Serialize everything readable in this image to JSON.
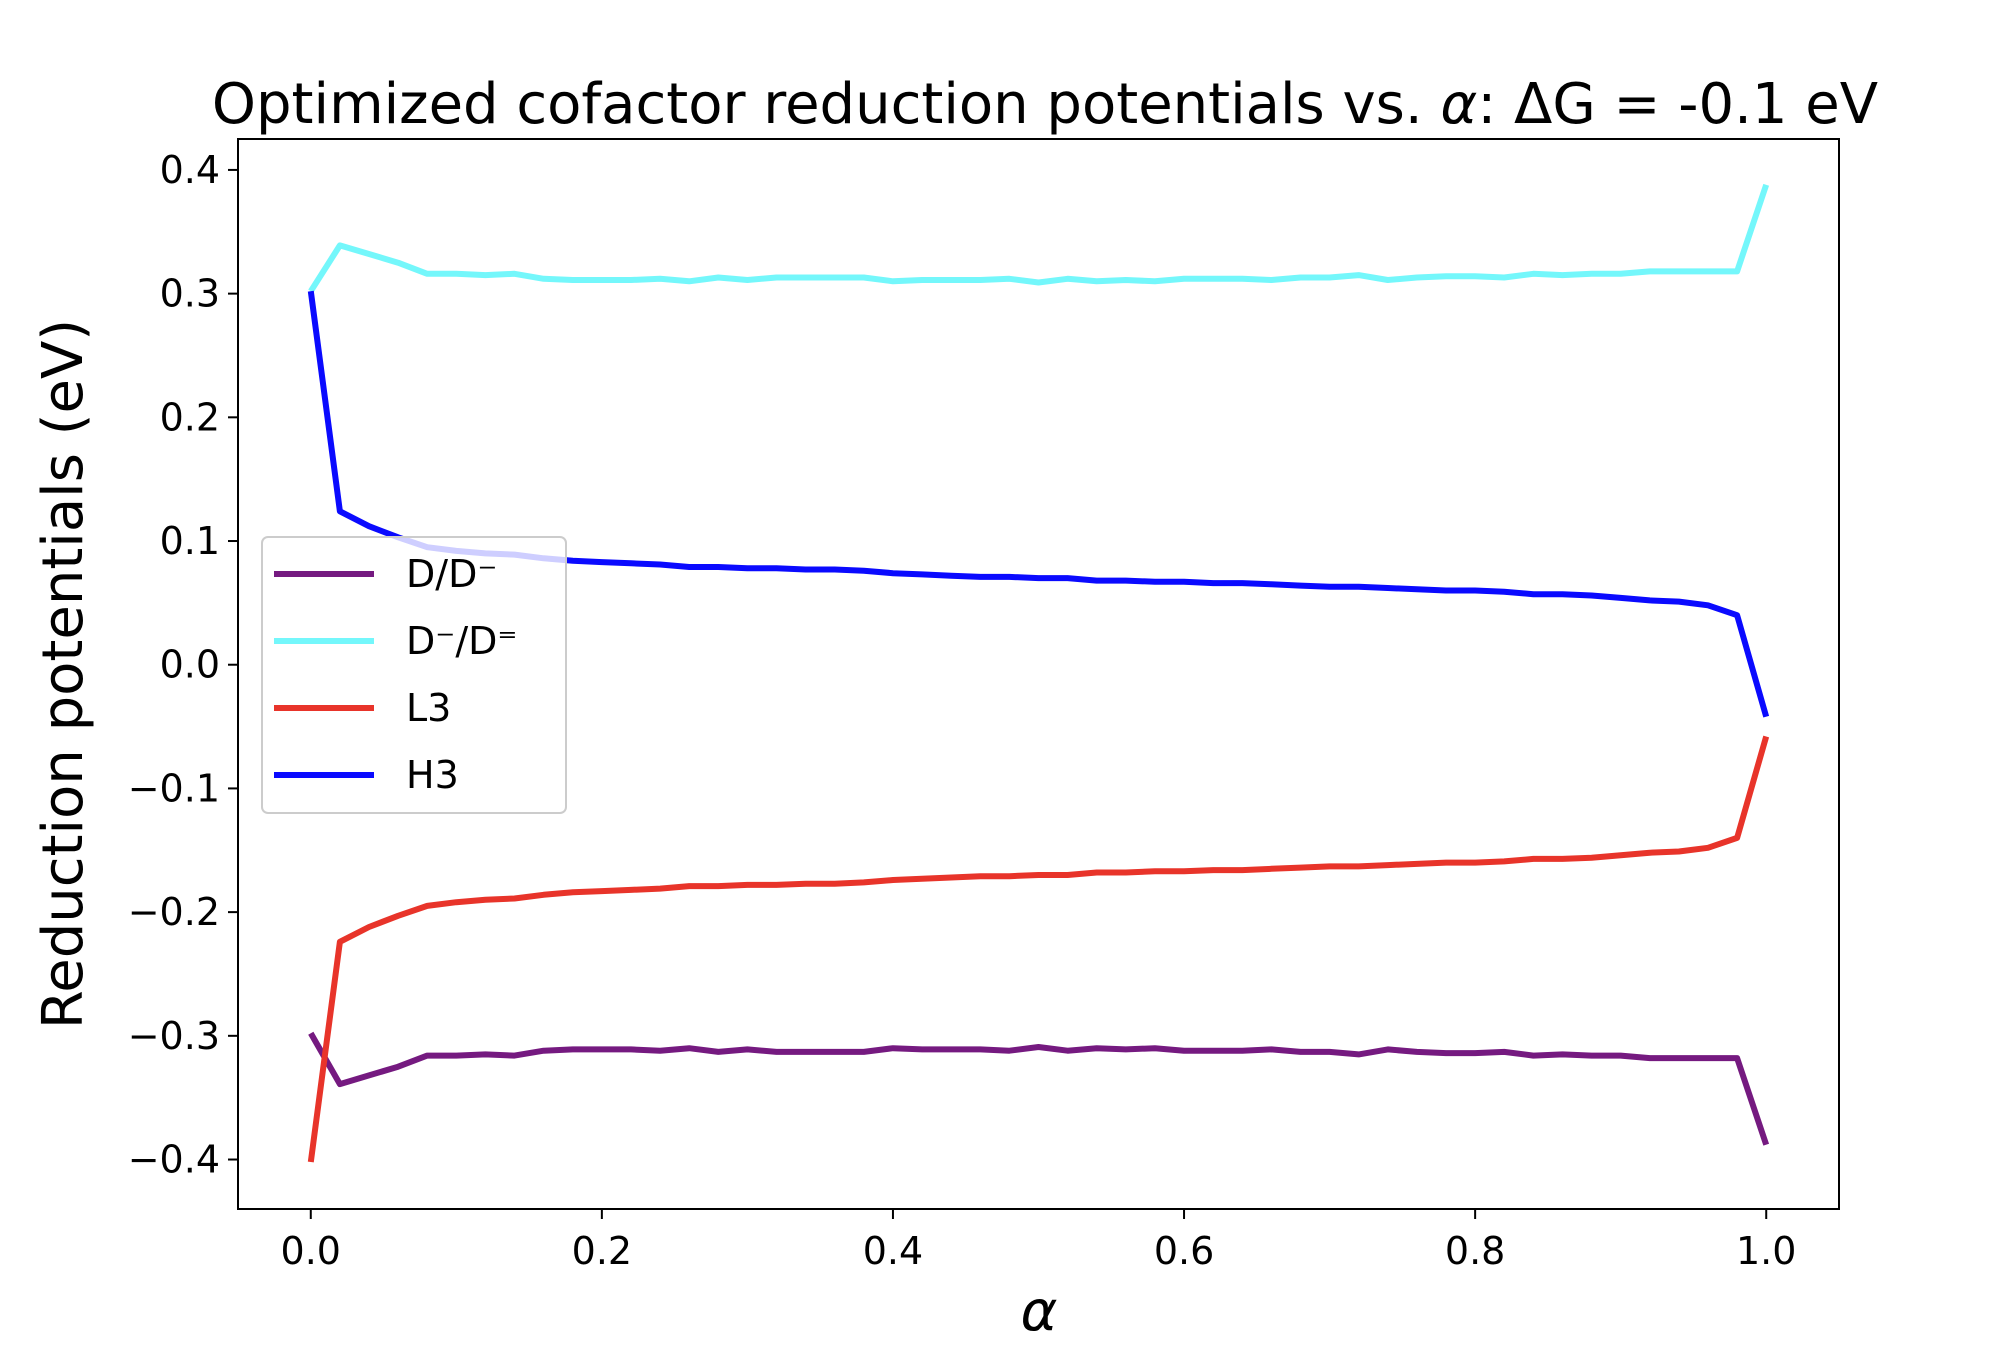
{
  "chart_data": {
    "type": "line",
    "title_parts": [
      "Optimized cofactor reduction potentials vs. ",
      "α",
      ": ΔG = -0.1 eV"
    ],
    "xlabel": "α",
    "ylabel": "Reduction potentials (eV)",
    "xlim": [
      -0.05,
      1.05
    ],
    "ylim": [
      -0.44,
      0.425
    ],
    "xticks": [
      0.0,
      0.2,
      0.4,
      0.6,
      0.8,
      1.0
    ],
    "xtick_labels": [
      "0.0",
      "0.2",
      "0.4",
      "0.6",
      "0.8",
      "1.0"
    ],
    "yticks": [
      0.4,
      0.3,
      0.2,
      0.1,
      0.0,
      -0.1,
      -0.2,
      -0.3,
      -0.4
    ],
    "ytick_labels": [
      "0.4",
      "0.3",
      "0.2",
      "0.1",
      "0.0",
      "−0.1",
      "−0.2",
      "−0.3",
      "−0.4"
    ],
    "grid": false,
    "legend_position": "center-left",
    "x": [
      0.0,
      0.02,
      0.04,
      0.06,
      0.08,
      0.1,
      0.12,
      0.14,
      0.16,
      0.18,
      0.2,
      0.22,
      0.24,
      0.26,
      0.28,
      0.3,
      0.32,
      0.34,
      0.36,
      0.38,
      0.4,
      0.42,
      0.44,
      0.46,
      0.48,
      0.5,
      0.52,
      0.54,
      0.56,
      0.58,
      0.6,
      0.62,
      0.64,
      0.66,
      0.68,
      0.7,
      0.72,
      0.74,
      0.76,
      0.78,
      0.8,
      0.82,
      0.84,
      0.86,
      0.88,
      0.9,
      0.92,
      0.94,
      0.96,
      0.98,
      1.0
    ],
    "series": [
      {
        "name": "D/D⁻",
        "color": "#751a80",
        "values": [
          -0.298,
          -0.339,
          -0.332,
          -0.325,
          -0.316,
          -0.316,
          -0.315,
          -0.316,
          -0.312,
          -0.311,
          -0.311,
          -0.311,
          -0.312,
          -0.31,
          -0.313,
          -0.311,
          -0.313,
          -0.313,
          -0.313,
          -0.313,
          -0.31,
          -0.311,
          -0.311,
          -0.311,
          -0.312,
          -0.309,
          -0.312,
          -0.31,
          -0.311,
          -0.31,
          -0.312,
          -0.312,
          -0.312,
          -0.311,
          -0.313,
          -0.313,
          -0.315,
          -0.311,
          -0.313,
          -0.314,
          -0.314,
          -0.313,
          -0.316,
          -0.315,
          -0.316,
          -0.316,
          -0.318,
          -0.318,
          -0.318,
          -0.318,
          -0.388
        ]
      },
      {
        "name": "D⁻/D⁼",
        "color": "#74f7fb",
        "values": [
          0.302,
          0.339,
          0.332,
          0.325,
          0.316,
          0.316,
          0.315,
          0.316,
          0.312,
          0.311,
          0.311,
          0.311,
          0.312,
          0.31,
          0.313,
          0.311,
          0.313,
          0.313,
          0.313,
          0.313,
          0.31,
          0.311,
          0.311,
          0.311,
          0.312,
          0.309,
          0.312,
          0.31,
          0.311,
          0.31,
          0.312,
          0.312,
          0.312,
          0.311,
          0.313,
          0.313,
          0.315,
          0.311,
          0.313,
          0.314,
          0.314,
          0.313,
          0.316,
          0.315,
          0.316,
          0.316,
          0.318,
          0.318,
          0.318,
          0.318,
          0.388
        ]
      },
      {
        "name": "L3",
        "color": "#e8342a",
        "values": [
          -0.402,
          -0.224,
          -0.212,
          -0.203,
          -0.195,
          -0.192,
          -0.19,
          -0.189,
          -0.186,
          -0.184,
          -0.183,
          -0.182,
          -0.181,
          -0.179,
          -0.179,
          -0.178,
          -0.178,
          -0.177,
          -0.177,
          -0.176,
          -0.174,
          -0.173,
          -0.172,
          -0.171,
          -0.171,
          -0.17,
          -0.17,
          -0.168,
          -0.168,
          -0.167,
          -0.167,
          -0.166,
          -0.166,
          -0.165,
          -0.164,
          -0.163,
          -0.163,
          -0.162,
          -0.161,
          -0.16,
          -0.16,
          -0.159,
          -0.157,
          -0.157,
          -0.156,
          -0.154,
          -0.152,
          -0.151,
          -0.148,
          -0.14,
          -0.058
        ]
      },
      {
        "name": "H3",
        "color": "#0a0aff",
        "values": [
          0.302,
          0.124,
          0.112,
          0.103,
          0.095,
          0.092,
          0.09,
          0.089,
          0.086,
          0.084,
          0.083,
          0.082,
          0.081,
          0.079,
          0.079,
          0.078,
          0.078,
          0.077,
          0.077,
          0.076,
          0.074,
          0.073,
          0.072,
          0.071,
          0.071,
          0.07,
          0.07,
          0.068,
          0.068,
          0.067,
          0.067,
          0.066,
          0.066,
          0.065,
          0.064,
          0.063,
          0.063,
          0.062,
          0.061,
          0.06,
          0.06,
          0.059,
          0.057,
          0.057,
          0.056,
          0.054,
          0.052,
          0.051,
          0.048,
          0.04,
          -0.042
        ]
      }
    ]
  }
}
